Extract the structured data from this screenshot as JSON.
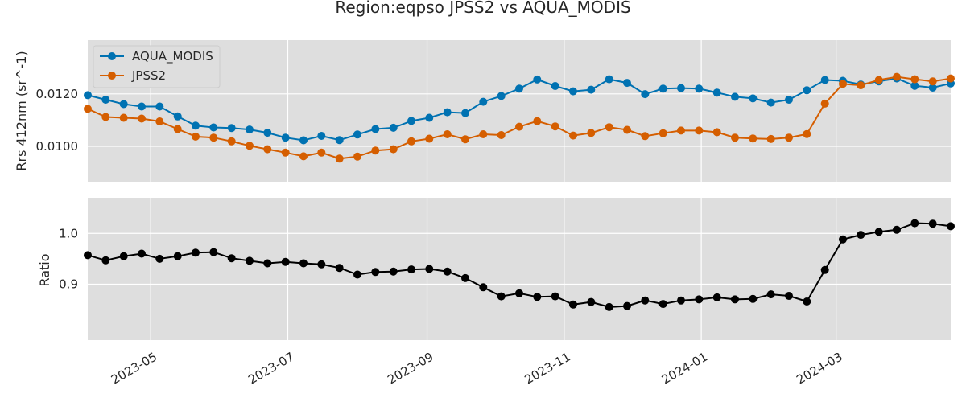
{
  "chart_data": {
    "type": "line",
    "title": "Region:eqpso JPSS2 vs AQUA_MODIS",
    "x_dates": [
      "2023-04-03",
      "2023-04-11",
      "2023-04-19",
      "2023-04-27",
      "2023-05-05",
      "2023-05-13",
      "2023-05-21",
      "2023-05-29",
      "2023-06-06",
      "2023-06-14",
      "2023-06-22",
      "2023-06-30",
      "2023-07-08",
      "2023-07-16",
      "2023-07-24",
      "2023-08-01",
      "2023-08-09",
      "2023-08-17",
      "2023-08-25",
      "2023-09-02",
      "2023-09-10",
      "2023-09-18",
      "2023-09-26",
      "2023-10-04",
      "2023-10-12",
      "2023-10-20",
      "2023-10-28",
      "2023-11-05",
      "2023-11-13",
      "2023-11-21",
      "2023-11-29",
      "2023-12-07",
      "2023-12-15",
      "2023-12-23",
      "2023-12-31",
      "2024-01-08",
      "2024-01-16",
      "2024-01-24",
      "2024-02-01",
      "2024-02-09",
      "2024-02-17",
      "2024-02-25",
      "2024-03-04",
      "2024-03-12",
      "2024-03-20",
      "2024-03-28",
      "2024-04-05",
      "2024-04-13",
      "2024-04-21"
    ],
    "x_range": [
      "2023-04-03",
      "2024-04-21"
    ],
    "x_ticks": [
      "2023-05",
      "2023-07",
      "2023-09",
      "2023-11",
      "2024-01",
      "2024-03"
    ],
    "panels": [
      {
        "ylabel": "Rrs 412nm (sr^-1)",
        "ylim": [
          0.00865,
          0.01405
        ],
        "yticks": [
          "0.0100",
          "0.0120"
        ],
        "legend_position": "upper-left",
        "series": [
          {
            "name": "AQUA_MODIS",
            "color": "#0072b2",
            "values": [
              0.01195,
              0.01178,
              0.01161,
              0.01152,
              0.01152,
              0.01114,
              0.01079,
              0.01072,
              0.0107,
              0.01064,
              0.01052,
              0.01033,
              0.01023,
              0.0104,
              0.01024,
              0.01045,
              0.01066,
              0.01071,
              0.01097,
              0.01109,
              0.0113,
              0.01127,
              0.0117,
              0.01192,
              0.0122,
              0.01255,
              0.0123,
              0.0121,
              0.01216,
              0.01256,
              0.01242,
              0.01199,
              0.0122,
              0.01222,
              0.0122,
              0.01205,
              0.01189,
              0.01183,
              0.01167,
              0.01178,
              0.01214,
              0.01253,
              0.0125,
              0.01236,
              0.01248,
              0.01259,
              0.01231,
              0.01224,
              0.0124
            ]
          },
          {
            "name": "JPSS2",
            "color": "#d55e00",
            "values": [
              0.01143,
              0.01112,
              0.01109,
              0.01106,
              0.01095,
              0.01066,
              0.01037,
              0.01033,
              0.01019,
              0.01002,
              0.00989,
              0.00976,
              0.00962,
              0.00976,
              0.00953,
              0.00961,
              0.00984,
              0.00989,
              0.01019,
              0.01029,
              0.01046,
              0.01027,
              0.01046,
              0.01043,
              0.01075,
              0.01096,
              0.01076,
              0.01041,
              0.01051,
              0.01073,
              0.01063,
              0.01039,
              0.0105,
              0.0106,
              0.0106,
              0.01054,
              0.01033,
              0.0103,
              0.01028,
              0.01033,
              0.01047,
              0.01163,
              0.01238,
              0.01233,
              0.01253,
              0.01265,
              0.01256,
              0.01248,
              0.01259
            ]
          }
        ]
      },
      {
        "ylabel": "Ratio",
        "ylim": [
          0.79,
          1.07
        ],
        "yticks": [
          "0.9",
          "1.0"
        ],
        "series": [
          {
            "name": "",
            "color": "#000000",
            "values": [
              0.957,
              0.947,
              0.955,
              0.96,
              0.95,
              0.955,
              0.962,
              0.963,
              0.951,
              0.946,
              0.941,
              0.944,
              0.941,
              0.939,
              0.932,
              0.919,
              0.924,
              0.925,
              0.929,
              0.93,
              0.925,
              0.912,
              0.894,
              0.876,
              0.882,
              0.875,
              0.876,
              0.86,
              0.865,
              0.855,
              0.857,
              0.868,
              0.861,
              0.868,
              0.87,
              0.874,
              0.87,
              0.871,
              0.88,
              0.877,
              0.866,
              0.928,
              0.988,
              0.997,
              1.003,
              1.007,
              1.02,
              1.019,
              1.014
            ]
          }
        ]
      }
    ]
  }
}
